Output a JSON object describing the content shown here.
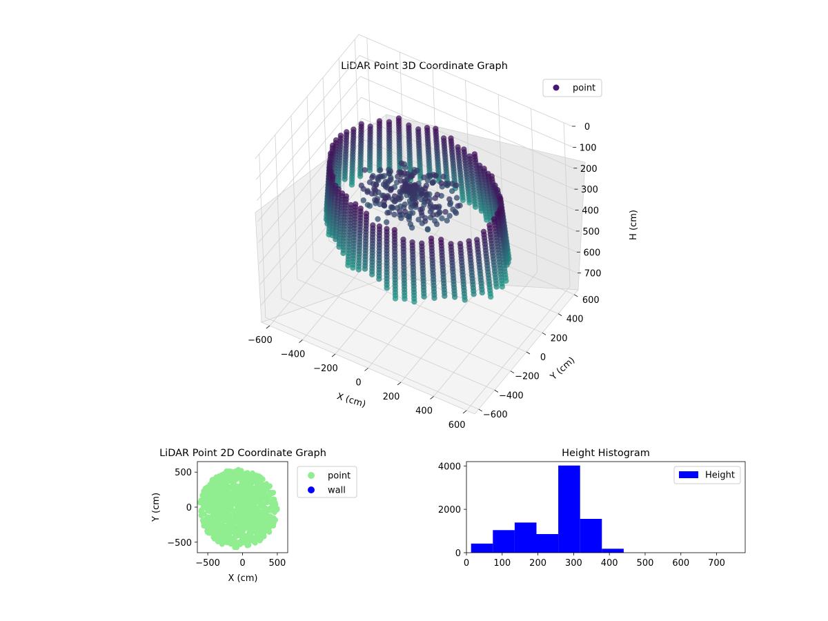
{
  "chart_data": [
    {
      "type": "scatter",
      "projection": "3d",
      "title": "LiDAR Point 3D Coordinate Graph",
      "xlabel": "X (cm)",
      "ylabel": "Y (cm)",
      "zlabel": "H (cm)",
      "xticks": [
        "−600",
        "−400",
        "−200",
        "0",
        "200",
        "400",
        "600"
      ],
      "yticks": [
        "600",
        "400",
        "200",
        "0",
        "−200",
        "−400",
        "−600"
      ],
      "zticks": [
        "0",
        "100",
        "200",
        "300",
        "400",
        "500",
        "600",
        "700"
      ],
      "xlim": [
        -650,
        650
      ],
      "ylim": [
        -650,
        650
      ],
      "zlim": [
        0,
        780
      ],
      "z_inverted": true,
      "colormap": "viridis",
      "color_range": [
        "#440154",
        "#1f9e89"
      ],
      "legend": {
        "entries": [
          "point"
        ],
        "location": "top-right"
      },
      "series": [
        {
          "name": "point",
          "shape": "ring of vertical scan columns",
          "ring_radius": [
            300,
            520
          ],
          "column_count": 60,
          "column_height": [
            170,
            430
          ],
          "center_cluster_height": [
            250,
            330
          ]
        }
      ],
      "grid": true
    },
    {
      "type": "scatter",
      "title": "LiDAR Point 2D Coordinate Graph",
      "xlabel": "X (cm)",
      "ylabel": "Y (cm)",
      "xticks": [
        "−500",
        "0",
        "500"
      ],
      "yticks": [
        "500",
        "0",
        "−500"
      ],
      "xlim": [
        -650,
        650
      ],
      "ylim": [
        -650,
        650
      ],
      "legend": {
        "entries": [
          "point",
          "wall"
        ],
        "location": "right-outside"
      },
      "series": [
        {
          "name": "point",
          "color": "#90ee90",
          "shape": "filled disk",
          "radius": 560
        },
        {
          "name": "wall",
          "color": "#0000ff",
          "values": []
        }
      ]
    },
    {
      "type": "bar",
      "subtype": "histogram",
      "title": "Height Histogram",
      "xticks": [
        "0",
        "100",
        "200",
        "300",
        "400",
        "500",
        "600",
        "700"
      ],
      "yticks": [
        "0",
        "2000",
        "4000"
      ],
      "xlim": [
        0,
        780
      ],
      "ylim": [
        0,
        4200
      ],
      "color": "#0000ff",
      "legend": {
        "entries": [
          "Height"
        ],
        "location": "top-right"
      },
      "bins": [
        {
          "x0": 13,
          "x1": 74,
          "count": 420
        },
        {
          "x0": 74,
          "x1": 135,
          "count": 1040
        },
        {
          "x0": 135,
          "x1": 196,
          "count": 1390
        },
        {
          "x0": 196,
          "x1": 257,
          "count": 860
        },
        {
          "x0": 257,
          "x1": 318,
          "count": 4020
        },
        {
          "x0": 318,
          "x1": 379,
          "count": 1560
        },
        {
          "x0": 379,
          "x1": 440,
          "count": 180
        }
      ]
    }
  ]
}
